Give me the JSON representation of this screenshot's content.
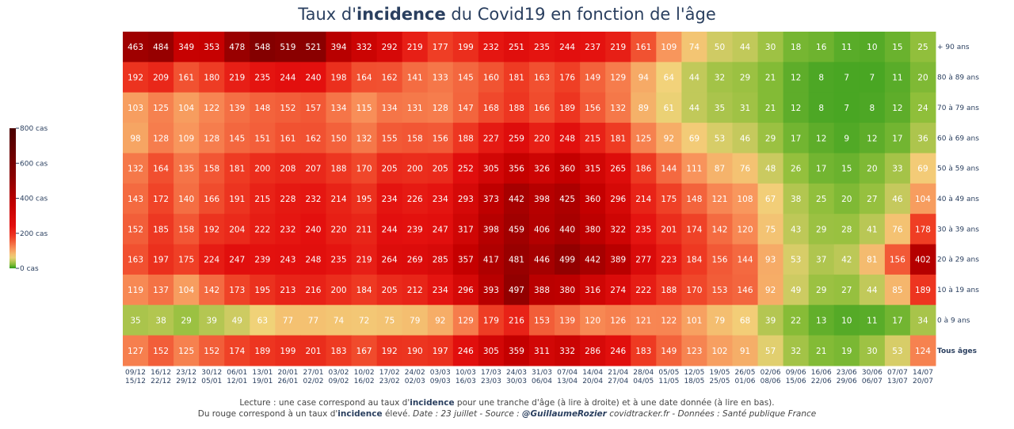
{
  "title": {
    "pre": "Taux d'",
    "bold": "incidence",
    "post": " du Covid19 en fonction de l'âge"
  },
  "footer": {
    "line1_pre": "Lecture : une case correspond au taux d'",
    "line1_bold": "incidence",
    "line1_post": " pour une tranche d'âge (à lire à droite) et à une date donnée (à lire en bas).",
    "line2_pre": "Du rouge correspond à un taux d'",
    "line2_bold": "incidence",
    "line2_mid": " élevé.  ",
    "line2_italic1": "Date : 23 juillet - Source : ",
    "line2_author": "@GuillaumeRozier",
    "line2_italic2": " covidtracker.fr - Données : Santé publique France"
  },
  "chart_data": {
    "type": "heatmap",
    "title": "Taux d'incidence du Covid19 en fonction de l'âge",
    "x": [
      "09/12\n15/12",
      "16/12\n22/12",
      "23/12\n29/12",
      "30/12\n05/01",
      "06/01\n12/01",
      "13/01\n19/01",
      "20/01\n26/01",
      "27/01\n02/02",
      "03/02\n09/02",
      "10/02\n16/02",
      "17/02\n23/02",
      "24/02\n02/03",
      "03/03\n09/03",
      "10/03\n16/03",
      "17/03\n23/03",
      "24/03\n30/03",
      "31/03\n06/04",
      "07/04\n13/04",
      "14/04\n20/04",
      "21/04\n27/04",
      "28/04\n04/05",
      "05/05\n11/05",
      "12/05\n18/05",
      "19/05\n25/05",
      "26/05\n01/06",
      "02/06\n08/06",
      "09/06\n15/06",
      "16/06\n22/06",
      "23/06\n29/06",
      "30/06\n06/07",
      "07/07\n13/07",
      "14/07\n20/07"
    ],
    "y": [
      "+ 90 ans",
      "80 à 89 ans",
      "70 à 79 ans",
      "60 à 69 ans",
      "50 à 59 ans",
      "40 à 49 ans",
      "30 à 39 ans",
      "20 à 29 ans",
      "10 à 19 ans",
      "0 à 9 ans",
      "Tous âges"
    ],
    "bold_rows": [
      "Tous âges"
    ],
    "z": [
      [
        463,
        484,
        349,
        353,
        478,
        548,
        519,
        521,
        394,
        332,
        292,
        219,
        177,
        199,
        232,
        251,
        235,
        244,
        237,
        219,
        161,
        109,
        74,
        50,
        44,
        30,
        18,
        16,
        11,
        10,
        15,
        25
      ],
      [
        192,
        209,
        161,
        180,
        219,
        235,
        244,
        240,
        198,
        164,
        162,
        141,
        133,
        145,
        160,
        181,
        163,
        176,
        149,
        129,
        94,
        64,
        44,
        32,
        29,
        21,
        12,
        8,
        7,
        7,
        11,
        20
      ],
      [
        103,
        125,
        104,
        122,
        139,
        148,
        152,
        157,
        134,
        115,
        134,
        131,
        128,
        147,
        168,
        188,
        166,
        189,
        156,
        132,
        89,
        61,
        44,
        35,
        31,
        21,
        12,
        8,
        7,
        8,
        12,
        24
      ],
      [
        98,
        128,
        109,
        128,
        145,
        151,
        161,
        162,
        150,
        132,
        155,
        158,
        156,
        188,
        227,
        259,
        220,
        248,
        215,
        181,
        125,
        92,
        69,
        53,
        46,
        29,
        17,
        12,
        9,
        12,
        17,
        36
      ],
      [
        132,
        164,
        135,
        158,
        181,
        200,
        208,
        207,
        188,
        170,
        205,
        200,
        205,
        252,
        305,
        356,
        326,
        360,
        315,
        265,
        186,
        144,
        111,
        87,
        76,
        48,
        26,
        17,
        15,
        20,
        33,
        69
      ],
      [
        143,
        172,
        140,
        166,
        191,
        215,
        228,
        232,
        214,
        195,
        234,
        226,
        234,
        293,
        373,
        442,
        398,
        425,
        360,
        296,
        214,
        175,
        148,
        121,
        108,
        67,
        38,
        25,
        20,
        27,
        46,
        104
      ],
      [
        152,
        185,
        158,
        192,
        204,
        222,
        232,
        240,
        220,
        211,
        244,
        239,
        247,
        317,
        398,
        459,
        406,
        440,
        380,
        322,
        235,
        201,
        174,
        142,
        120,
        75,
        43,
        29,
        28,
        41,
        76,
        178
      ],
      [
        163,
        197,
        175,
        224,
        247,
        239,
        243,
        248,
        235,
        219,
        264,
        269,
        285,
        357,
        417,
        481,
        446,
        499,
        442,
        389,
        277,
        223,
        184,
        156,
        144,
        93,
        53,
        37,
        42,
        81,
        156,
        402
      ],
      [
        119,
        137,
        104,
        142,
        173,
        195,
        213,
        216,
        200,
        184,
        205,
        212,
        234,
        296,
        393,
        497,
        388,
        380,
        316,
        274,
        222,
        188,
        170,
        153,
        146,
        92,
        49,
        29,
        27,
        44,
        85,
        189
      ],
      [
        35,
        38,
        29,
        39,
        49,
        63,
        77,
        77,
        74,
        72,
        75,
        79,
        92,
        129,
        179,
        216,
        153,
        139,
        120,
        126,
        121,
        122,
        101,
        79,
        68,
        39,
        22,
        13,
        10,
        11,
        17,
        34
      ],
      [
        127,
        152,
        125,
        152,
        174,
        189,
        199,
        201,
        183,
        167,
        192,
        190,
        197,
        246,
        305,
        359,
        311,
        332,
        286,
        246,
        183,
        149,
        123,
        102,
        91,
        57,
        32,
        21,
        19,
        30,
        53,
        124
      ]
    ],
    "zmin": 0,
    "zmax": 800,
    "colorbar": {
      "ticks": [
        0,
        200,
        400,
        600,
        800
      ],
      "tick_labels": [
        "0 cas",
        "200 cas",
        "400 cas",
        "600 cas",
        "800 cas"
      ],
      "position": "left"
    },
    "colorscale": [
      [
        0,
        "#2c9b1a"
      ],
      [
        0.03,
        "#8fbf3a"
      ],
      [
        0.08,
        "#f2d27a"
      ],
      [
        0.14,
        "#f8925a"
      ],
      [
        0.22,
        "#ef3f25"
      ],
      [
        0.3,
        "#e3100e"
      ],
      [
        0.45,
        "#c40000"
      ],
      [
        0.65,
        "#8a0000"
      ],
      [
        1,
        "#4a0000"
      ]
    ]
  }
}
